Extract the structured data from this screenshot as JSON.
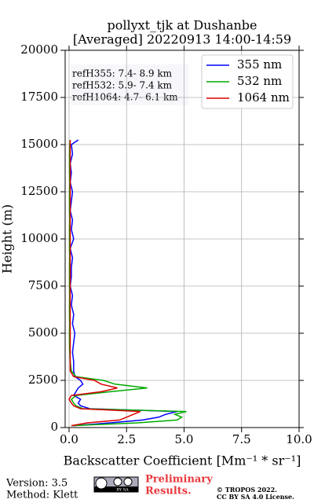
{
  "chart_data": {
    "type": "line",
    "title": [
      "pollyxt_tjk at Dushanbe",
      "[Averaged] 20220913 14:00-14:59"
    ],
    "x_label": "Backscatter Coefficient [Mm⁻¹ * sr⁻¹]",
    "y_label": "Height (m)",
    "annotations": [
      "refH355:  7.4- 8.9 km",
      "refH532:  5.9- 7.4 km",
      "refH1064:  4.7- 6.1 km"
    ],
    "xlim": [
      -0.17,
      10
    ],
    "xticks": [
      {
        "value": 0,
        "label": "0.0"
      },
      2.5,
      {
        "value": 5,
        "label": "5.0"
      },
      7.5,
      {
        "value": 10,
        "label": "10.0"
      }
    ],
    "ylim": [
      0,
      20000
    ],
    "yticks": [
      0,
      2500,
      5000,
      7500,
      10000,
      12500,
      15000,
      17500,
      20000
    ],
    "grid": true,
    "legend": "upper right",
    "y": [
      100,
      250,
      400,
      550,
      700,
      850,
      1000,
      1150,
      1300,
      1500,
      1700,
      1900,
      2100,
      2300,
      2500,
      2700,
      3000,
      3500,
      4000,
      4500,
      5000,
      5500,
      6000,
      6500,
      7000,
      7500,
      8000,
      8500,
      9000,
      9500,
      10000,
      10500,
      11000,
      11500,
      12000,
      12500,
      13000,
      13500,
      14000,
      14500,
      15000,
      15250
    ],
    "series": [
      {
        "name": "355 nm",
        "color": "#0000ff",
        "values": [
          0.2,
          1.8,
          3.2,
          3.9,
          4.2,
          4.7,
          0.9,
          0.5,
          0.4,
          0.5,
          0.2,
          0.3,
          0.4,
          0.6,
          0.5,
          0.25,
          0.2,
          0.2,
          0.15,
          0.2,
          0.25,
          0.15,
          0.2,
          0.1,
          0.15,
          0.05,
          0.1,
          0.1,
          0.15,
          0.05,
          0.2,
          0.1,
          0.15,
          0.05,
          0.1,
          0.15,
          0.05,
          0.1,
          0.05,
          0.15,
          0.1,
          0.4
        ]
      },
      {
        "name": "532 nm",
        "color": "#00aa00",
        "values": [
          0.1,
          3.0,
          4.7,
          4.9,
          4.6,
          5.1,
          0.6,
          0.3,
          0.2,
          0.1,
          0.3,
          1.8,
          3.4,
          2.0,
          1.5,
          0.3,
          0.1,
          0.05,
          0.03,
          0.02,
          0.02,
          0.03,
          0.02,
          0.02,
          0.03,
          0.02,
          0.02,
          0.02,
          0.03,
          0.02,
          0.02,
          0.02,
          0.03,
          0.02,
          0.02,
          0.02,
          0.03,
          0.02,
          0.02,
          0.02,
          0.03,
          0.05
        ]
      },
      {
        "name": "1064 nm",
        "color": "#dd0000",
        "values": [
          0.1,
          0.8,
          2.2,
          2.5,
          2.8,
          3.1,
          0.5,
          0.2,
          0.1,
          0.0,
          0.1,
          1.4,
          2.1,
          1.4,
          1.1,
          0.2,
          0.05,
          0.05,
          0.05,
          0.05,
          0.05,
          0.05,
          0.05,
          0.05,
          0.05,
          0.05,
          0.05,
          0.05,
          0.05,
          0.05,
          0.05,
          0.05,
          0.05,
          0.05,
          0.05,
          0.05,
          0.05,
          0.05,
          0.05,
          0.05,
          0.05,
          0.05
        ]
      }
    ]
  },
  "footer": {
    "version": "Version: 3.5",
    "method": "Method: Klett",
    "badge": "BY SA",
    "preliminary": [
      "Preliminary",
      "Results."
    ],
    "copyright": [
      "© TROPOS 2022.",
      "CC BY SA 4.0 License."
    ]
  }
}
